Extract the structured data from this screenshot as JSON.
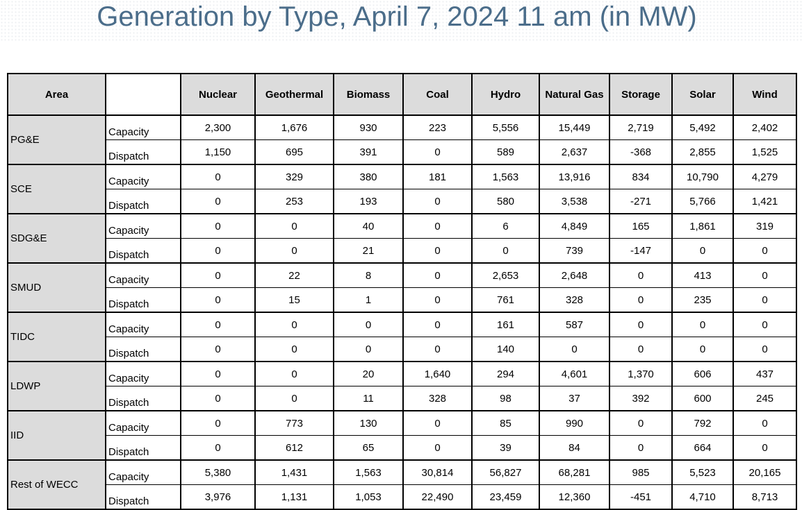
{
  "title": "Generation by Type, April 7, 2024 11 am (in MW)",
  "table": {
    "header": {
      "area": "Area",
      "columns": [
        "Nuclear",
        "Geothermal",
        "Biomass",
        "Coal",
        "Hydro",
        "Natural Gas",
        "Storage",
        "Solar",
        "Wind"
      ]
    },
    "areas": [
      {
        "name": "PG&E",
        "rows": [
          {
            "label": "Capacity",
            "values": [
              "2,300",
              "1,676",
              "930",
              "223",
              "5,556",
              "15,449",
              "2,719",
              "5,492",
              "2,402"
            ]
          },
          {
            "label": "Dispatch",
            "values": [
              "1,150",
              "695",
              "391",
              "0",
              "589",
              "2,637",
              "-368",
              "2,855",
              "1,525"
            ]
          }
        ]
      },
      {
        "name": "SCE",
        "rows": [
          {
            "label": "Capacity",
            "values": [
              "0",
              "329",
              "380",
              "181",
              "1,563",
              "13,916",
              "834",
              "10,790",
              "4,279"
            ]
          },
          {
            "label": "Dispatch",
            "values": [
              "0",
              "253",
              "193",
              "0",
              "580",
              "3,538",
              "-271",
              "5,766",
              "1,421"
            ]
          }
        ]
      },
      {
        "name": "SDG&E",
        "rows": [
          {
            "label": "Capacity",
            "values": [
              "0",
              "0",
              "40",
              "0",
              "6",
              "4,849",
              "165",
              "1,861",
              "319"
            ]
          },
          {
            "label": "Dispatch",
            "values": [
              "0",
              "0",
              "21",
              "0",
              "0",
              "739",
              "-147",
              "0",
              "0"
            ]
          }
        ]
      },
      {
        "name": "SMUD",
        "rows": [
          {
            "label": "Capacity",
            "values": [
              "0",
              "22",
              "8",
              "0",
              "2,653",
              "2,648",
              "0",
              "413",
              "0"
            ]
          },
          {
            "label": "Dispatch",
            "values": [
              "0",
              "15",
              "1",
              "0",
              "761",
              "328",
              "0",
              "235",
              "0"
            ]
          }
        ]
      },
      {
        "name": "TIDC",
        "rows": [
          {
            "label": "Capacity",
            "values": [
              "0",
              "0",
              "0",
              "0",
              "161",
              "587",
              "0",
              "0",
              "0"
            ]
          },
          {
            "label": "Dispatch",
            "values": [
              "0",
              "0",
              "0",
              "0",
              "140",
              "0",
              "0",
              "0",
              "0"
            ]
          }
        ]
      },
      {
        "name": "LDWP",
        "rows": [
          {
            "label": "Capacity",
            "values": [
              "0",
              "0",
              "20",
              "1,640",
              "294",
              "4,601",
              "1,370",
              "606",
              "437"
            ]
          },
          {
            "label": "Dispatch",
            "values": [
              "0",
              "0",
              "11",
              "328",
              "98",
              "37",
              "392",
              "600",
              "245"
            ]
          }
        ]
      },
      {
        "name": "IID",
        "rows": [
          {
            "label": "Capacity",
            "values": [
              "0",
              "773",
              "130",
              "0",
              "85",
              "990",
              "0",
              "792",
              "0"
            ]
          },
          {
            "label": "Dispatch",
            "values": [
              "0",
              "612",
              "65",
              "0",
              "39",
              "84",
              "0",
              "664",
              "0"
            ]
          }
        ]
      },
      {
        "name": "Rest of WECC",
        "rows": [
          {
            "label": "Capacity",
            "values": [
              "5,380",
              "1,431",
              "1,563",
              "30,814",
              "56,827",
              "68,281",
              "985",
              "5,523",
              "20,165"
            ]
          },
          {
            "label": "Dispatch",
            "values": [
              "3,976",
              "1,131",
              "1,053",
              "22,490",
              "23,459",
              "12,360",
              "-451",
              "4,710",
              "8,713"
            ]
          }
        ]
      }
    ]
  }
}
